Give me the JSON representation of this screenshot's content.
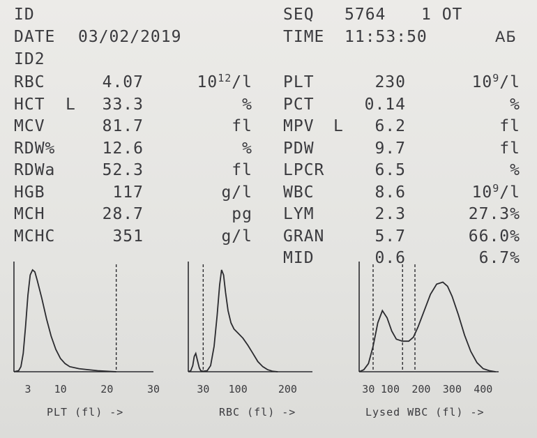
{
  "header": {
    "id_label": "ID",
    "seq_label": "SEQ",
    "seq_value": "5764",
    "seq_suffix": "1 OT",
    "date_label": "DATE",
    "date_value": "03/02/2019",
    "time_label": "TIME",
    "time_value": "11:53:50",
    "operator": "АБ",
    "id2_label": "ID2"
  },
  "left_results": [
    {
      "name": "RBC",
      "flag": "",
      "value": "4.07",
      "unit": "10",
      "unit_sup": "12",
      "unit_tail": "/l"
    },
    {
      "name": "HCT",
      "flag": "L",
      "value": "33.3",
      "unit": "%",
      "unit_sup": "",
      "unit_tail": ""
    },
    {
      "name": "MCV",
      "flag": "",
      "value": "81.7",
      "unit": "fl",
      "unit_sup": "",
      "unit_tail": ""
    },
    {
      "name": "RDW%",
      "flag": "",
      "value": "12.6",
      "unit": "%",
      "unit_sup": "",
      "unit_tail": ""
    },
    {
      "name": "RDWa",
      "flag": "",
      "value": "52.3",
      "unit": "fl",
      "unit_sup": "",
      "unit_tail": ""
    },
    {
      "name": "HGB",
      "flag": "",
      "value": "117",
      "unit": "g/l",
      "unit_sup": "",
      "unit_tail": ""
    },
    {
      "name": "MCH",
      "flag": "",
      "value": "28.7",
      "unit": "pg",
      "unit_sup": "",
      "unit_tail": ""
    },
    {
      "name": "MCHC",
      "flag": "",
      "value": "351",
      "unit": "g/l",
      "unit_sup": "",
      "unit_tail": ""
    }
  ],
  "right_results": [
    {
      "name": "PLT",
      "flag": "",
      "value": "230",
      "unit": "10",
      "unit_sup": "9",
      "unit_tail": "/l"
    },
    {
      "name": "PCT",
      "flag": "",
      "value": "0.14",
      "unit": "%",
      "unit_sup": "",
      "unit_tail": ""
    },
    {
      "name": "MPV",
      "flag": "L",
      "value": "6.2",
      "unit": "fl",
      "unit_sup": "",
      "unit_tail": ""
    },
    {
      "name": "PDW",
      "flag": "",
      "value": "9.7",
      "unit": "fl",
      "unit_sup": "",
      "unit_tail": ""
    },
    {
      "name": "LPCR",
      "flag": "",
      "value": "6.5",
      "unit": "%",
      "unit_sup": "",
      "unit_tail": ""
    },
    {
      "name": "WBC",
      "flag": "",
      "value": "8.6",
      "unit": "10",
      "unit_sup": "9",
      "unit_tail": "/l"
    },
    {
      "name": "LYM",
      "flag": "",
      "value": "2.3",
      "unit": "27.3%",
      "unit_sup": "",
      "unit_tail": ""
    },
    {
      "name": "GRAN",
      "flag": "",
      "value": "5.7",
      "unit": "66.0%",
      "unit_sup": "",
      "unit_tail": ""
    },
    {
      "name": "MID",
      "flag": "",
      "value": "0.6",
      "unit": "6.7%",
      "unit_sup": "",
      "unit_tail": ""
    }
  ],
  "histograms": {
    "plt": {
      "xlabel": "PLT (fl) ->",
      "ticks": [
        {
          "label": "3",
          "v": 3
        },
        {
          "label": "10",
          "v": 10
        },
        {
          "label": "20",
          "v": 20
        },
        {
          "label": "30",
          "v": 30
        }
      ],
      "xrange": [
        0,
        30
      ],
      "discriminators": [
        22
      ],
      "curve": [
        [
          0,
          0
        ],
        [
          1,
          0.01
        ],
        [
          1.5,
          0.05
        ],
        [
          2,
          0.18
        ],
        [
          2.5,
          0.45
        ],
        [
          3,
          0.75
        ],
        [
          3.5,
          0.95
        ],
        [
          4,
          1.0
        ],
        [
          4.5,
          0.98
        ],
        [
          5,
          0.9
        ],
        [
          6,
          0.72
        ],
        [
          7,
          0.52
        ],
        [
          8,
          0.35
        ],
        [
          9,
          0.22
        ],
        [
          10,
          0.13
        ],
        [
          11,
          0.08
        ],
        [
          12,
          0.05
        ],
        [
          14,
          0.03
        ],
        [
          16,
          0.02
        ],
        [
          18,
          0.01
        ],
        [
          20,
          0.005
        ],
        [
          22,
          0.0
        ]
      ]
    },
    "rbc": {
      "xlabel": "RBC (fl) ->",
      "ticks": [
        {
          "label": "30",
          "v": 30
        },
        {
          "label": "100",
          "v": 100
        },
        {
          "label": "200",
          "v": 200
        }
      ],
      "xrange": [
        0,
        250
      ],
      "discriminators": [
        30
      ],
      "curve": [
        [
          0,
          0
        ],
        [
          5,
          0.01
        ],
        [
          9,
          0.06
        ],
        [
          12,
          0.15
        ],
        [
          15,
          0.18
        ],
        [
          18,
          0.12
        ],
        [
          22,
          0.04
        ],
        [
          25,
          0.01
        ],
        [
          30,
          0.005
        ],
        [
          38,
          0.01
        ],
        [
          45,
          0.06
        ],
        [
          52,
          0.25
        ],
        [
          58,
          0.55
        ],
        [
          63,
          0.85
        ],
        [
          67,
          1.0
        ],
        [
          71,
          0.95
        ],
        [
          75,
          0.78
        ],
        [
          80,
          0.6
        ],
        [
          86,
          0.48
        ],
        [
          92,
          0.42
        ],
        [
          100,
          0.38
        ],
        [
          110,
          0.33
        ],
        [
          120,
          0.26
        ],
        [
          130,
          0.18
        ],
        [
          140,
          0.1
        ],
        [
          150,
          0.05
        ],
        [
          160,
          0.02
        ],
        [
          170,
          0.005
        ],
        [
          180,
          0
        ]
      ]
    },
    "wbc": {
      "xlabel": "Lysed WBC (fl) ->",
      "ticks": [
        {
          "label": "30",
          "v": 30
        },
        {
          "label": "100",
          "v": 100
        },
        {
          "label": "200",
          "v": 200
        },
        {
          "label": "300",
          "v": 300
        },
        {
          "label": "400",
          "v": 400
        }
      ],
      "xrange": [
        0,
        450
      ],
      "discriminators": [
        45,
        140,
        180
      ],
      "curve": [
        [
          0,
          0
        ],
        [
          15,
          0.02
        ],
        [
          30,
          0.08
        ],
        [
          45,
          0.25
        ],
        [
          60,
          0.48
        ],
        [
          75,
          0.6
        ],
        [
          90,
          0.53
        ],
        [
          105,
          0.4
        ],
        [
          120,
          0.32
        ],
        [
          140,
          0.3
        ],
        [
          160,
          0.3
        ],
        [
          175,
          0.34
        ],
        [
          190,
          0.44
        ],
        [
          210,
          0.6
        ],
        [
          230,
          0.76
        ],
        [
          250,
          0.86
        ],
        [
          270,
          0.88
        ],
        [
          285,
          0.84
        ],
        [
          300,
          0.74
        ],
        [
          320,
          0.56
        ],
        [
          340,
          0.36
        ],
        [
          360,
          0.2
        ],
        [
          380,
          0.09
        ],
        [
          400,
          0.03
        ],
        [
          420,
          0.01
        ],
        [
          440,
          0
        ]
      ]
    }
  }
}
